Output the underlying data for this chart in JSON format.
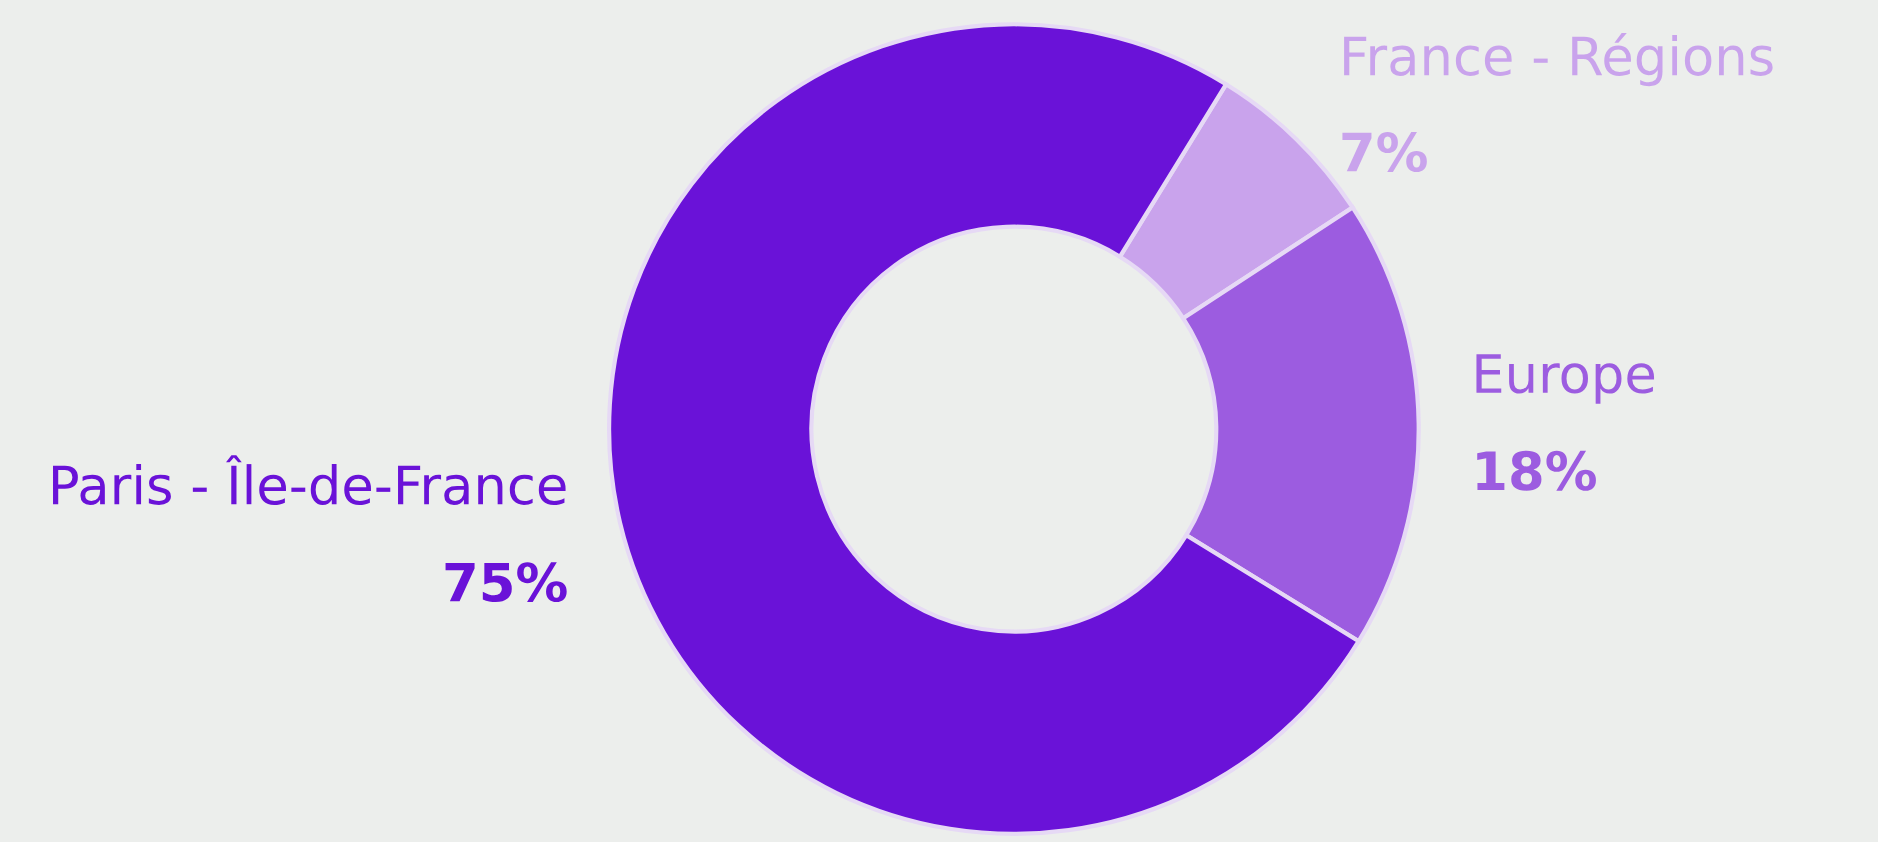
{
  "chart_data": {
    "type": "donut",
    "categories": [
      "France - Régions",
      "Europe",
      "Paris - Île-de-France"
    ],
    "values": [
      7,
      18,
      75
    ],
    "colors": [
      "#c9a3ec",
      "#9c5ce0",
      "#6a12d8"
    ],
    "value_labels": [
      "7%",
      "18%",
      "75%"
    ],
    "legend": false
  }
}
